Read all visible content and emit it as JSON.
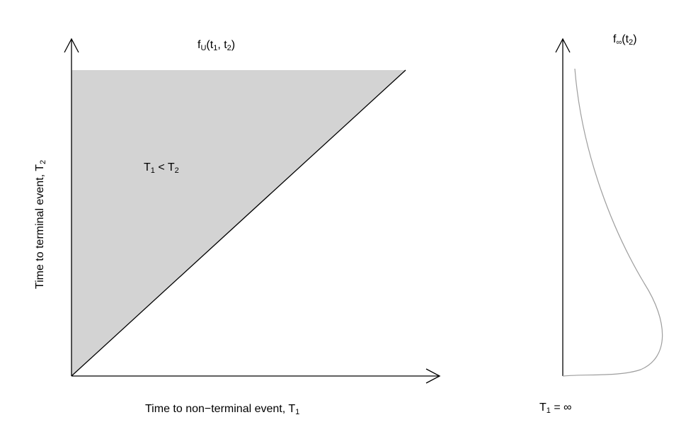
{
  "left_panel": {
    "title": {
      "base": "f",
      "sub1": "U",
      "mid1": "(t",
      "sub2": "1",
      "mid2": ", t",
      "sub3": "2",
      "end": ")"
    },
    "region_label": {
      "a": "T",
      "a_sub": "1",
      "op": " < T",
      "b_sub": "2"
    },
    "x_axis_label": {
      "text": "Time to non−terminal event, T",
      "sub": "1"
    },
    "y_axis_label": {
      "text": "Time to terminal event, T",
      "sub": "2"
    },
    "shaded_region_color": "#d3d3d3"
  },
  "right_panel": {
    "title": {
      "base": "f",
      "sub1": "∞",
      "mid": "(t",
      "sub2": "2",
      "end": ")"
    },
    "bottom_label": {
      "text": "T",
      "sub": "1",
      "rest": " = ∞"
    },
    "curve_color": "#9e9e9e"
  }
}
